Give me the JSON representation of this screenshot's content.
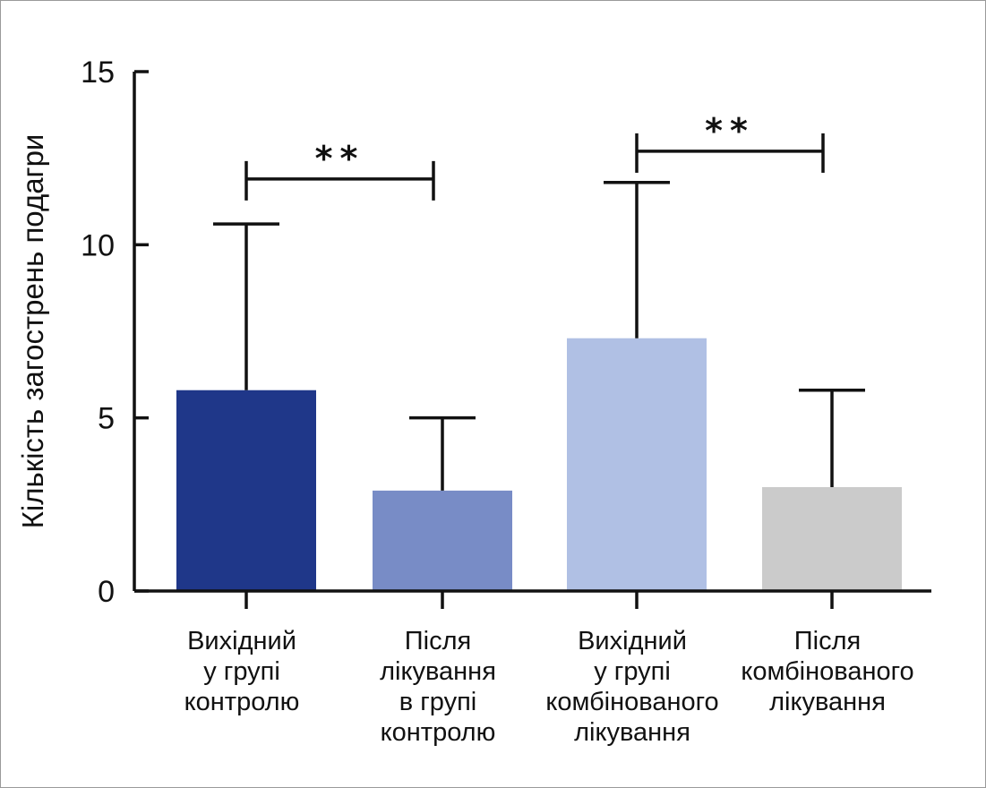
{
  "chart_data": {
    "type": "bar",
    "ylabel": "Кількість загострень подагри",
    "ylim": [
      0,
      15
    ],
    "yticks": [
      "0",
      "5",
      "10",
      "15"
    ],
    "grid": false,
    "categories": [
      [
        "Вихідний",
        "у групі",
        "контролю"
      ],
      [
        "Після",
        "лікування",
        "в групі",
        "контролю"
      ],
      [
        "Вихідний",
        "у групі",
        "комбінованого",
        "лікування"
      ],
      [
        "Після",
        "комбінованого",
        "лікування"
      ]
    ],
    "values": [
      5.8,
      2.9,
      7.3,
      3.0
    ],
    "error_upper": [
      10.6,
      5.0,
      11.8,
      5.8
    ],
    "colors": [
      "#1f3789",
      "#788cc6",
      "#b0c0e4",
      "#cbcbcb"
    ],
    "significance": [
      {
        "from": 0,
        "to": 1,
        "label": "**",
        "y": 11.9
      },
      {
        "from": 2,
        "to": 3,
        "label": "**",
        "y": 12.7
      }
    ]
  }
}
